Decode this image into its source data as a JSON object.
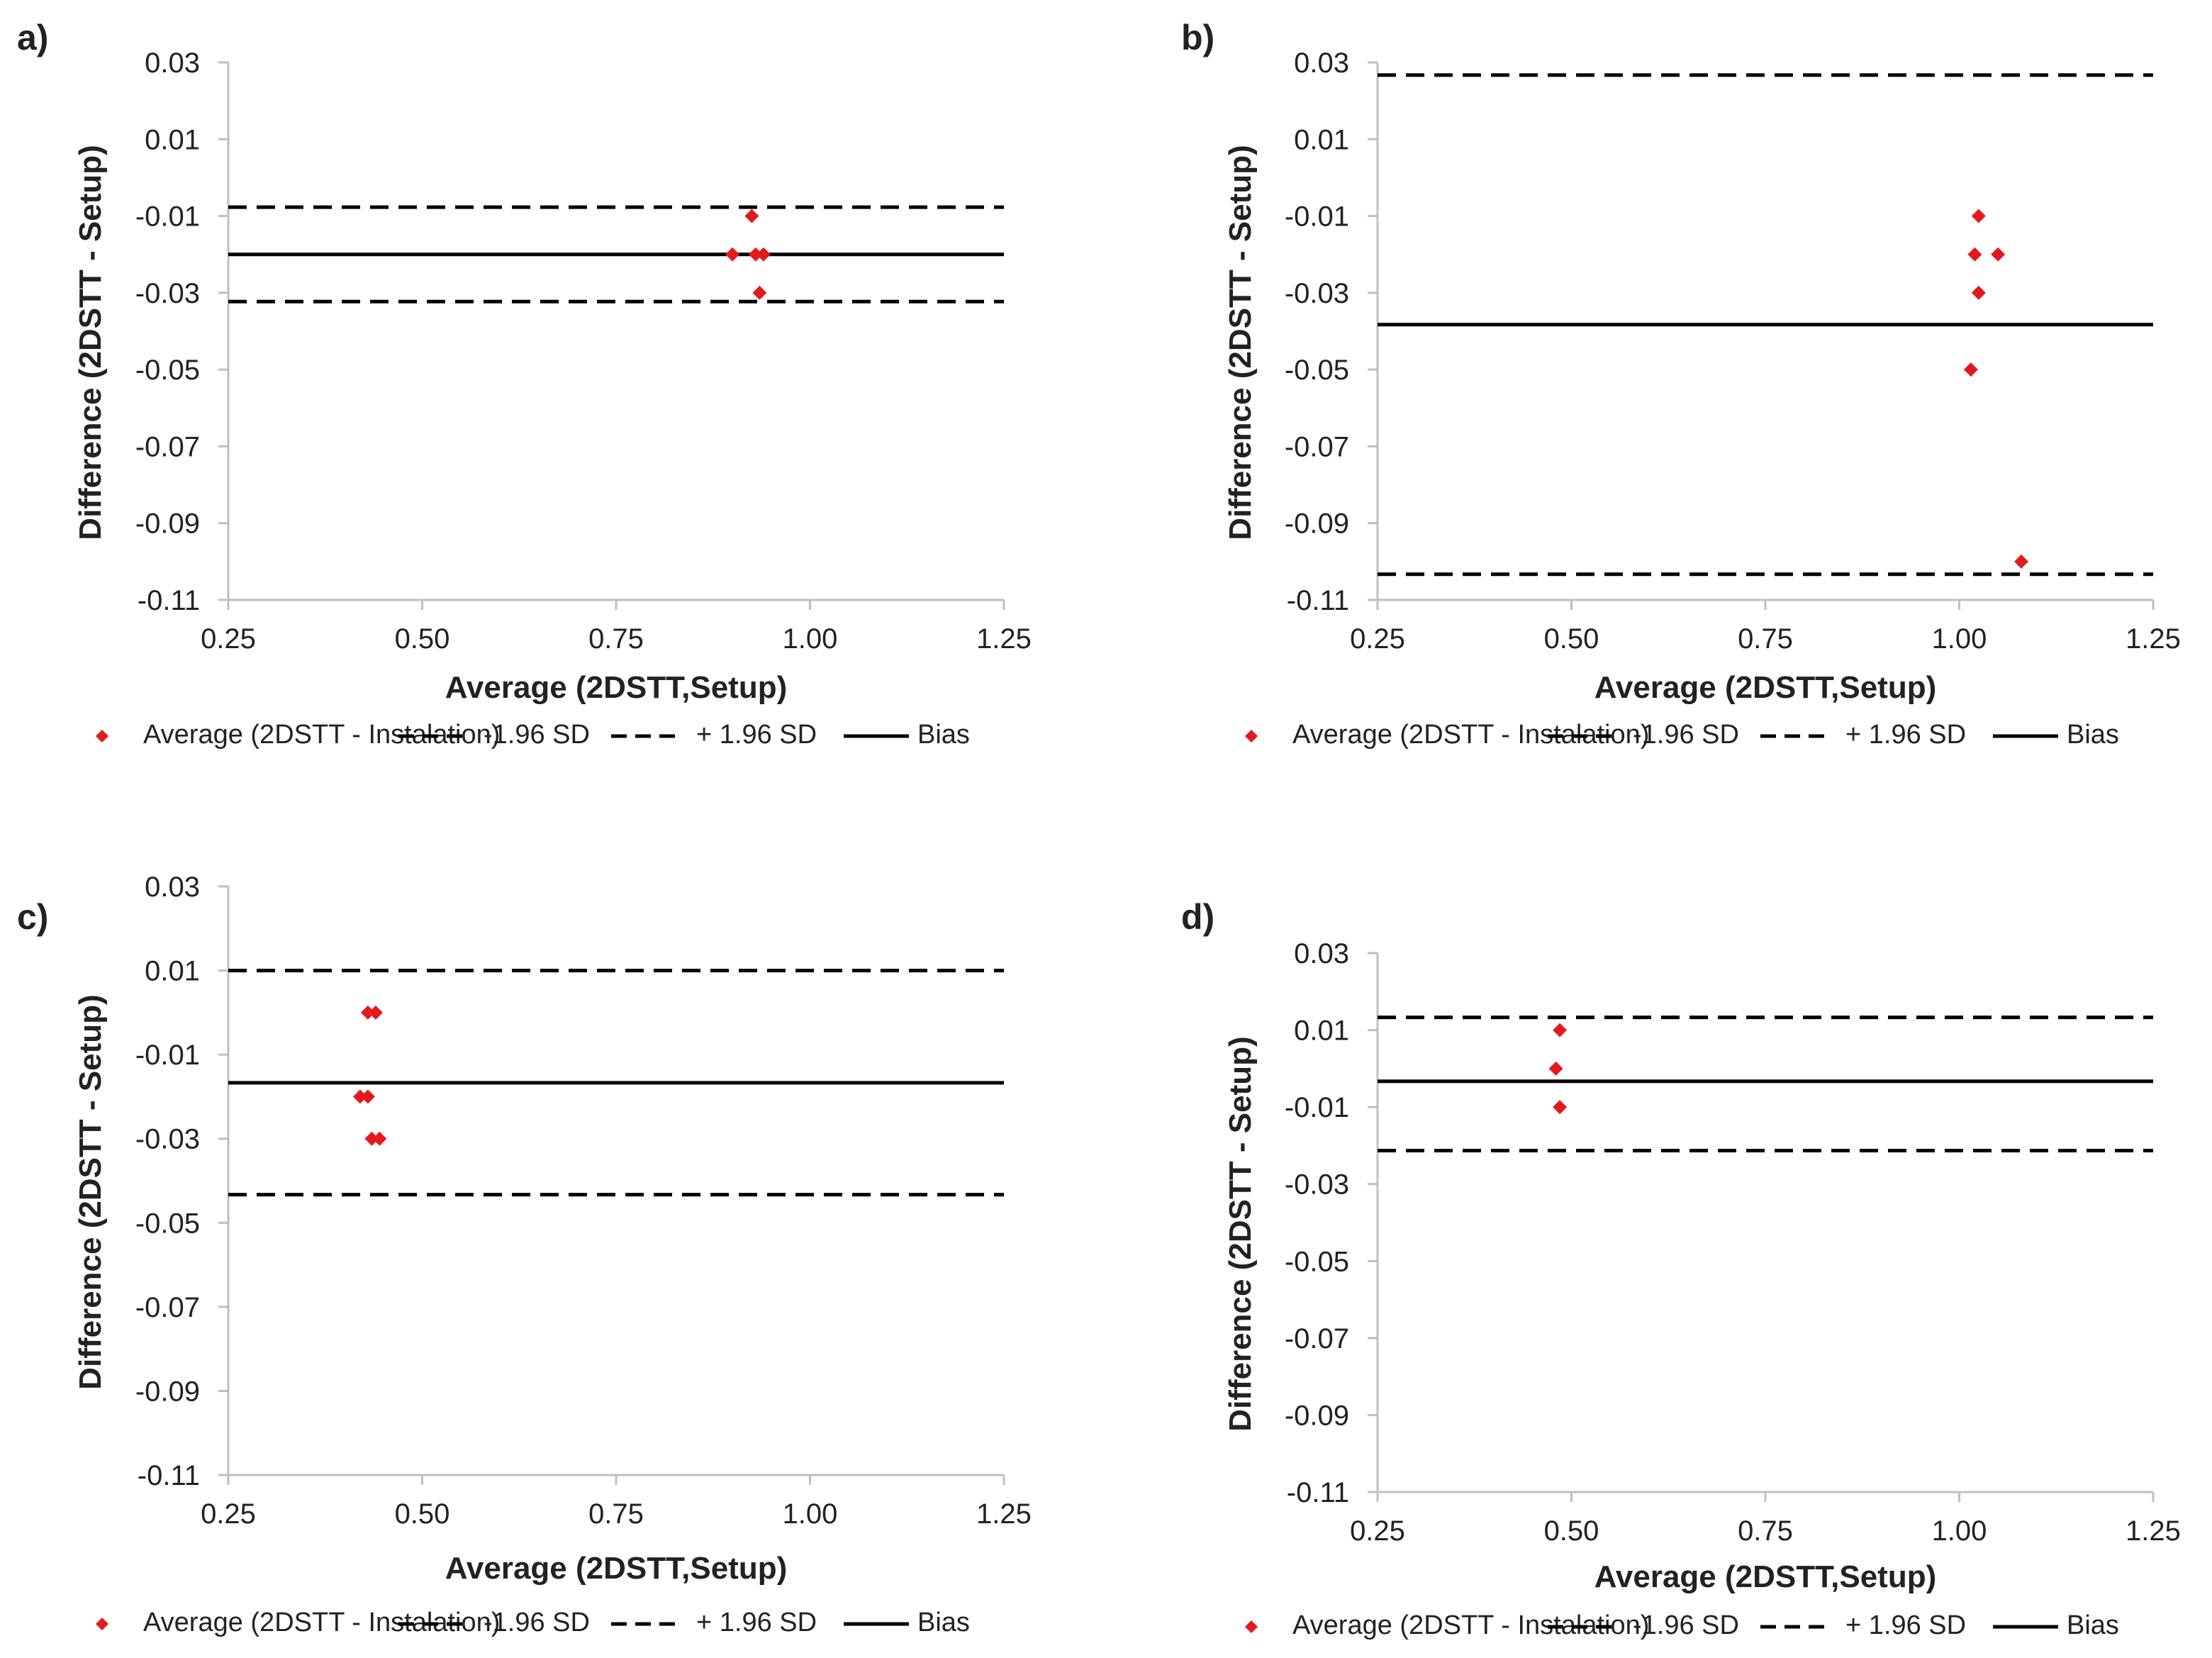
{
  "figure": {
    "background": "#ffffff",
    "marker_color": "#e31a1c",
    "line_color": "#000000",
    "axis_color": "#bfbfbf"
  },
  "chart_data": [
    {
      "panel": "a)",
      "type": "scatter",
      "xlabel": "Average (2DSTT,Setup)",
      "ylabel": "Difference (2DSTT - Setup)",
      "xlim": [
        0.25,
        1.25
      ],
      "ylim": [
        -0.11,
        0.03
      ],
      "x_ticks": [
        "0.25",
        "0.50",
        "0.75",
        "1.00",
        "1.25"
      ],
      "y_ticks": [
        "0.03",
        "0.01",
        "-0.01",
        "-0.03",
        "-0.05",
        "-0.07",
        "-0.09",
        "-0.11"
      ],
      "points": [
        {
          "x": 0.925,
          "y": -0.01
        },
        {
          "x": 0.9,
          "y": -0.02
        },
        {
          "x": 0.93,
          "y": -0.02
        },
        {
          "x": 0.94,
          "y": -0.02
        },
        {
          "x": 0.935,
          "y": -0.03
        }
      ],
      "bias": -0.02,
      "lower_loa": -0.0323,
      "upper_loa": -0.0077,
      "legend": {
        "points": "Average (2DSTT - Instalation)",
        "lower": "-1.96 SD",
        "upper": "+ 1.96 SD",
        "bias": "Bias"
      }
    },
    {
      "panel": "b)",
      "type": "scatter",
      "xlabel": "Average (2DSTT,Setup)",
      "ylabel": "Difference (2DSTT - Setup)",
      "xlim": [
        0.25,
        1.25
      ],
      "ylim": [
        -0.11,
        0.03
      ],
      "x_ticks": [
        "0.25",
        "0.50",
        "0.75",
        "1.00",
        "1.25"
      ],
      "y_ticks": [
        "0.03",
        "0.01",
        "-0.01",
        "-0.03",
        "-0.05",
        "-0.07",
        "-0.09",
        "-0.11"
      ],
      "points": [
        {
          "x": 1.025,
          "y": -0.01
        },
        {
          "x": 1.02,
          "y": -0.02
        },
        {
          "x": 1.05,
          "y": -0.02
        },
        {
          "x": 1.025,
          "y": -0.03
        },
        {
          "x": 1.015,
          "y": -0.05
        },
        {
          "x": 1.08,
          "y": -0.1
        }
      ],
      "bias": -0.0383,
      "lower_loa": -0.1033,
      "upper_loa": 0.0267,
      "legend": {
        "points": "Average (2DSTT - Instalation)",
        "lower": "-1.96 SD",
        "upper": "+ 1.96 SD",
        "bias": "Bias"
      }
    },
    {
      "panel": "c)",
      "type": "scatter",
      "xlabel": "Average (2DSTT,Setup)",
      "ylabel": "Difference (2DSTT - Setup)",
      "xlim": [
        0.25,
        1.25
      ],
      "ylim": [
        -0.11,
        0.03
      ],
      "x_ticks": [
        "0.25",
        "0.50",
        "0.75",
        "1.00",
        "1.25"
      ],
      "y_ticks": [
        "0.03",
        "0.01",
        "-0.01",
        "-0.03",
        "-0.05",
        "-0.07",
        "-0.09",
        "-0.11"
      ],
      "points": [
        {
          "x": 0.43,
          "y": 0.0
        },
        {
          "x": 0.44,
          "y": 0.0
        },
        {
          "x": 0.42,
          "y": -0.02
        },
        {
          "x": 0.43,
          "y": -0.02
        },
        {
          "x": 0.435,
          "y": -0.03
        },
        {
          "x": 0.445,
          "y": -0.03
        }
      ],
      "bias": -0.0167,
      "lower_loa": -0.0433,
      "upper_loa": 0.01,
      "legend": {
        "points": "Average (2DSTT - Instalation)",
        "lower": "-1.96 SD",
        "upper": "+ 1.96 SD",
        "bias": "Bias"
      }
    },
    {
      "panel": "d)",
      "type": "scatter",
      "xlabel": "Average (2DSTT,Setup)",
      "ylabel": "Difference (2DSTT - Setup)",
      "xlim": [
        0.25,
        1.25
      ],
      "ylim": [
        -0.11,
        0.03
      ],
      "x_ticks": [
        "0.25",
        "0.50",
        "0.75",
        "1.00",
        "1.25"
      ],
      "y_ticks": [
        "0.03",
        "0.01",
        "-0.01",
        "-0.03",
        "-0.05",
        "-0.07",
        "-0.09",
        "-0.11"
      ],
      "points": [
        {
          "x": 0.485,
          "y": 0.01
        },
        {
          "x": 0.48,
          "y": 0.0
        },
        {
          "x": 0.485,
          "y": -0.01
        }
      ],
      "bias": -0.0033,
      "lower_loa": -0.0213,
      "upper_loa": 0.0133,
      "legend": {
        "points": "Average (2DSTT - Instalation)",
        "lower": "-1.96 SD",
        "upper": "+ 1.96 SD",
        "bias": "Bias"
      }
    }
  ]
}
